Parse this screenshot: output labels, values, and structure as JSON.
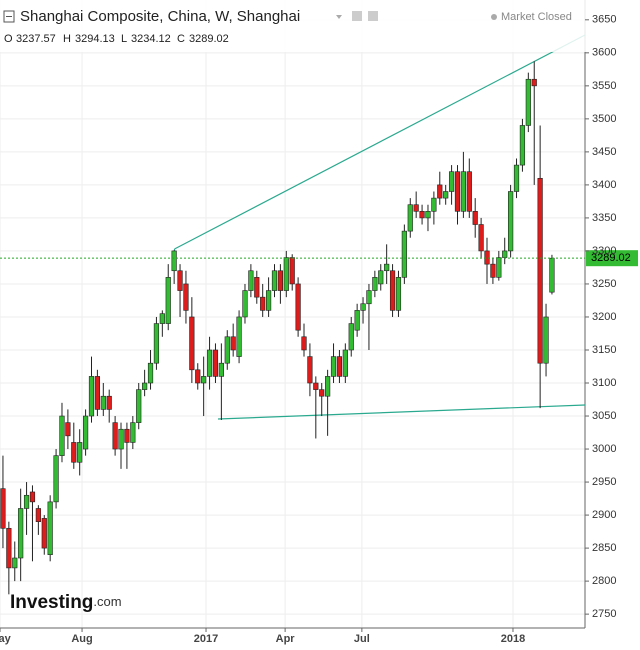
{
  "chart_data": {
    "type": "candlestick",
    "title": "Shanghai Composite, China, W, Shanghai",
    "status": "Market Closed",
    "ohlc_labels": [
      "O",
      "H",
      "L",
      "C"
    ],
    "brand": "Investing",
    "brand_suffix": ".com",
    "up_color": "#33bb33",
    "down_color": "#dd1c1c",
    "grid": true,
    "ylim": [
      2729,
      3680
    ],
    "yticks": [
      2750,
      2800,
      2850,
      2900,
      2950,
      3000,
      3050,
      3100,
      3150,
      3200,
      3250,
      3300,
      3350,
      3400,
      3450,
      3500,
      3550,
      3600,
      3650
    ],
    "xlim": [
      -0.5,
      98.6
    ],
    "xticks": [
      {
        "value": -0.5,
        "label": "May"
      },
      {
        "value": 13.4,
        "label": "Aug"
      },
      {
        "value": 34.4,
        "label": "2017"
      },
      {
        "value": 47.8,
        "label": "Apr"
      },
      {
        "value": 60.8,
        "label": "Jul"
      },
      {
        "value": 86.4,
        "label": "2018"
      }
    ],
    "categories": [
      null,
      null,
      null,
      null,
      null,
      null,
      null,
      null,
      null,
      null,
      null,
      null,
      null,
      null,
      null,
      null,
      null,
      null,
      null,
      null,
      null,
      null,
      null,
      null,
      null,
      null,
      null,
      null,
      null,
      null,
      null,
      null,
      null,
      null,
      null,
      null,
      null,
      null,
      null,
      null,
      null,
      null,
      null,
      null,
      null,
      null,
      null,
      null,
      null,
      null,
      null,
      null,
      null,
      null,
      null,
      null,
      null,
      null,
      null,
      null,
      null,
      null,
      null,
      null,
      null,
      null,
      null,
      null,
      null,
      null,
      null,
      null,
      null,
      null,
      null,
      null,
      null,
      null,
      null,
      null,
      null,
      null,
      null,
      null,
      null,
      null,
      null,
      null,
      null,
      null,
      null,
      null,
      null,
      null
    ],
    "open": [
      2940,
      2880,
      2820,
      2835,
      2910,
      2935,
      2910,
      2895,
      2840,
      2920,
      2990,
      3040,
      3010,
      2980,
      3000,
      3050,
      3110,
      3060,
      3080,
      3040,
      3000,
      3030,
      3010,
      3040,
      3090,
      3100,
      3130,
      3190,
      3190,
      3270,
      3270,
      3250,
      3200,
      3120,
      3100,
      3110,
      3150,
      3110,
      3130,
      3170,
      3140,
      3200,
      3240,
      3260,
      3230,
      3210,
      3240,
      3270,
      3240,
      3290,
      3250,
      3170,
      3140,
      3100,
      3090,
      3080,
      3110,
      3140,
      3110,
      3150,
      3180,
      3210,
      3220,
      3240,
      3250,
      3270,
      3270,
      3210,
      3260,
      3330,
      3370,
      3360,
      3350,
      3360,
      3400,
      3380,
      3390,
      3420,
      3360,
      3420,
      3360,
      3340,
      3300,
      3280,
      3260,
      3290,
      3300,
      3390,
      3430,
      3490,
      3560,
      3410,
      3130,
      3237.57
    ],
    "high": [
      2990,
      2890,
      2860,
      2940,
      2950,
      2945,
      2915,
      2900,
      2930,
      3000,
      3070,
      3060,
      3040,
      3030,
      3060,
      3140,
      3120,
      3100,
      3090,
      3050,
      3040,
      3040,
      3050,
      3100,
      3120,
      3150,
      3200,
      3210,
      3280,
      3301,
      3280,
      3270,
      3230,
      3130,
      3140,
      3170,
      3160,
      3160,
      3180,
      3190,
      3210,
      3250,
      3280,
      3270,
      3250,
      3260,
      3280,
      3280,
      3300,
      3295,
      3260,
      3190,
      3160,
      3110,
      3100,
      3120,
      3160,
      3150,
      3160,
      3200,
      3220,
      3230,
      3250,
      3270,
      3280,
      3310,
      3280,
      3270,
      3340,
      3380,
      3390,
      3370,
      3370,
      3390,
      3420,
      3400,
      3430,
      3430,
      3450,
      3440,
      3380,
      3350,
      3320,
      3290,
      3300,
      3320,
      3400,
      3440,
      3500,
      3570,
      3587,
      3490,
      3220,
      3294.13
    ],
    "low": [
      2850,
      2780,
      2800,
      2800,
      2870,
      2830,
      2870,
      2840,
      2830,
      2910,
      2980,
      3000,
      2970,
      2960,
      2990,
      3040,
      3050,
      3050,
      3040,
      2990,
      2970,
      2970,
      3000,
      3030,
      3080,
      3090,
      3120,
      3170,
      3180,
      3250,
      3200,
      3190,
      3100,
      3090,
      3050,
      3090,
      3100,
      3044,
      3120,
      3140,
      3130,
      3190,
      3230,
      3220,
      3200,
      3200,
      3230,
      3220,
      3230,
      3240,
      3170,
      3140,
      3080,
      3016,
      3050,
      3020,
      3100,
      3100,
      3100,
      3140,
      3170,
      3190,
      3150,
      3230,
      3240,
      3250,
      3200,
      3200,
      3250,
      3320,
      3350,
      3340,
      3330,
      3340,
      3370,
      3370,
      3370,
      3340,
      3350,
      3350,
      3320,
      3290,
      3250,
      3250,
      3255,
      3280,
      3290,
      3380,
      3420,
      3480,
      3400,
      3062,
      3110,
      3234.12
    ],
    "close": [
      2880,
      2820,
      2835,
      2910,
      2930,
      2920,
      2890,
      2850,
      2920,
      2990,
      3050,
      3020,
      2980,
      3010,
      3050,
      3110,
      3060,
      3080,
      3060,
      3000,
      3030,
      3010,
      3040,
      3090,
      3100,
      3130,
      3190,
      3205,
      3260,
      3300,
      3240,
      3210,
      3120,
      3100,
      3110,
      3150,
      3110,
      3130,
      3170,
      3150,
      3200,
      3240,
      3270,
      3230,
      3210,
      3240,
      3270,
      3240,
      3290,
      3250,
      3180,
      3150,
      3100,
      3090,
      3080,
      3110,
      3140,
      3110,
      3150,
      3190,
      3210,
      3220,
      3240,
      3260,
      3270,
      3280,
      3210,
      3260,
      3330,
      3370,
      3360,
      3350,
      3360,
      3380,
      3380,
      3390,
      3420,
      3360,
      3420,
      3360,
      3340,
      3300,
      3280,
      3260,
      3290,
      3300,
      3390,
      3430,
      3490,
      3560,
      3550,
      3130,
      3200,
      3289.02
    ]
  }
}
